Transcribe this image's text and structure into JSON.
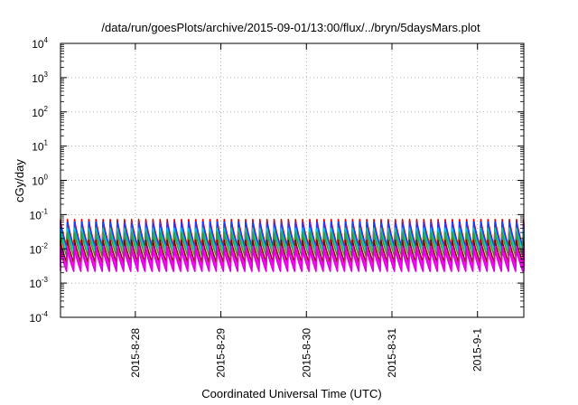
{
  "chart_data": {
    "type": "line",
    "title": "/data/run/goesPlots/archive/2015-09-01/13:00/flux/../bryn/5daysMars.plot",
    "xlabel": "Coordinated Universal Time (UTC)",
    "ylabel": "cGy/day",
    "y_scale": "log",
    "ylim": [
      0.0001,
      10000
    ],
    "xlim": [
      "2015-08-27T03:00",
      "2015-09-01T13:00"
    ],
    "x_ticks": [
      {
        "label": "2015-8-28",
        "value": "2015-08-28T00:00"
      },
      {
        "label": "2015-8-29",
        "value": "2015-08-29T00:00"
      },
      {
        "label": "2015-8-30",
        "value": "2015-08-30T00:00"
      },
      {
        "label": "2015-8-31",
        "value": "2015-08-31T00:00"
      },
      {
        "label": "2015-9-1",
        "value": "2015-09-01T00:00"
      }
    ],
    "y_ticks": [
      {
        "base": "10",
        "exp": "4",
        "value": 10000
      },
      {
        "base": "10",
        "exp": "3",
        "value": 1000
      },
      {
        "base": "10",
        "exp": "2",
        "value": 100
      },
      {
        "base": "10",
        "exp": "1",
        "value": 10
      },
      {
        "base": "10",
        "exp": "0",
        "value": 1
      },
      {
        "base": "10",
        "exp": "-1",
        "value": 0.1
      },
      {
        "base": "10",
        "exp": "-2",
        "value": 0.01
      },
      {
        "base": "10",
        "exp": "-3",
        "value": 0.001
      },
      {
        "base": "10",
        "exp": "-4",
        "value": 0.0001
      }
    ],
    "grid": true,
    "sawtooth_period_hours": 2.0,
    "series": [
      {
        "color": "#e00000",
        "peak": 0.072,
        "trough": 0.0115
      },
      {
        "color": "#1e3cff",
        "peak": 0.06,
        "trough": 0.01
      },
      {
        "color": "#00c8c8",
        "peak": 0.04,
        "trough": 0.009
      },
      {
        "color": "#3a9a3a",
        "peak": 0.03,
        "trough": 0.0062
      },
      {
        "color": "#8b0000",
        "peak": 0.018,
        "trough": 0.004
      },
      {
        "color": "#ff00ff",
        "peak": 0.012,
        "trough": 0.003
      },
      {
        "color": "#e000e0",
        "peak": 0.01,
        "trough": 0.0022
      }
    ]
  }
}
